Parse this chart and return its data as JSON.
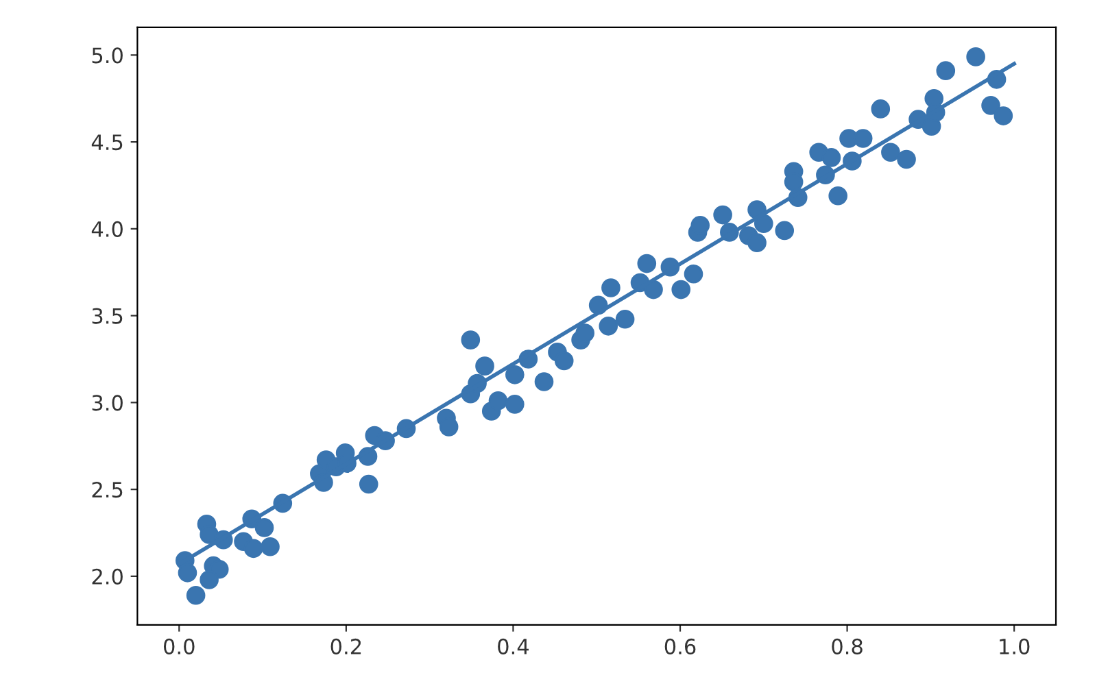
{
  "chart_data": {
    "type": "scatter",
    "xlim": [
      -0.05,
      1.05
    ],
    "ylim": [
      1.72,
      5.16
    ],
    "xticks": [
      {
        "value": 0,
        "label": "0.0"
      },
      {
        "value": 0.2,
        "label": "0.2"
      },
      {
        "value": 0.4,
        "label": "0.4"
      },
      {
        "value": 0.6,
        "label": "0.6"
      },
      {
        "value": 0.8,
        "label": "0.8"
      },
      {
        "value": 1,
        "label": "1.0"
      }
    ],
    "yticks": [
      {
        "value": 2,
        "label": "2.0"
      },
      {
        "value": 2.5,
        "label": "2.5"
      },
      {
        "value": 3,
        "label": "3.0"
      },
      {
        "value": 3.5,
        "label": "3.5"
      },
      {
        "value": 4,
        "label": "4.0"
      },
      {
        "value": 4.5,
        "label": "4.5"
      },
      {
        "value": 5,
        "label": "5.0"
      }
    ],
    "grid": false,
    "series": [
      {
        "marker": "circle",
        "color": "#3a75b0",
        "x": [
          0.02,
          0.007,
          0.01,
          0.033,
          0.036,
          0.041,
          0.048,
          0.036,
          0.053,
          0.077,
          0.087,
          0.089,
          0.102,
          0.109,
          0.124,
          0.168,
          0.176,
          0.173,
          0.188,
          0.199,
          0.201,
          0.226,
          0.227,
          0.234,
          0.247,
          0.272,
          0.32,
          0.323,
          0.349,
          0.366,
          0.349,
          0.357,
          0.374,
          0.382,
          0.402,
          0.402,
          0.418,
          0.437,
          0.453,
          0.461,
          0.481,
          0.486,
          0.502,
          0.517,
          0.514,
          0.534,
          0.552,
          0.56,
          0.568,
          0.588,
          0.601,
          0.616,
          0.621,
          0.624,
          0.651,
          0.659,
          0.682,
          0.692,
          0.692,
          0.7,
          0.725,
          0.736,
          0.736,
          0.741,
          0.766,
          0.781,
          0.774,
          0.789,
          0.802,
          0.806,
          0.819,
          0.84,
          0.852,
          0.871,
          0.885,
          0.901,
          0.904,
          0.906,
          0.918,
          0.954,
          0.979,
          0.972,
          0.987
        ],
        "values": [
          1.89,
          2.09,
          2.02,
          2.3,
          2.24,
          2.06,
          2.04,
          1.98,
          2.21,
          2.2,
          2.33,
          2.16,
          2.28,
          2.17,
          2.42,
          2.59,
          2.67,
          2.54,
          2.63,
          2.71,
          2.65,
          2.69,
          2.53,
          2.81,
          2.78,
          2.85,
          2.91,
          2.86,
          3.36,
          3.21,
          3.05,
          3.11,
          2.95,
          3.01,
          2.99,
          3.16,
          3.25,
          3.12,
          3.29,
          3.24,
          3.36,
          3.4,
          3.56,
          3.66,
          3.44,
          3.48,
          3.69,
          3.8,
          3.65,
          3.78,
          3.65,
          3.74,
          3.98,
          4.02,
          4.08,
          3.98,
          3.96,
          4.11,
          3.92,
          4.03,
          3.99,
          4.33,
          4.27,
          4.18,
          4.44,
          4.41,
          4.31,
          4.19,
          4.52,
          4.39,
          4.52,
          4.69,
          4.44,
          4.4,
          4.63,
          4.59,
          4.75,
          4.67,
          4.91,
          4.99,
          4.86,
          4.71,
          4.65
        ]
      },
      {
        "type": "line",
        "color": "#3a75b0",
        "line_style": "solid",
        "x": [
          0,
          1
        ],
        "values": [
          2.07,
          4.95
        ]
      }
    ]
  }
}
